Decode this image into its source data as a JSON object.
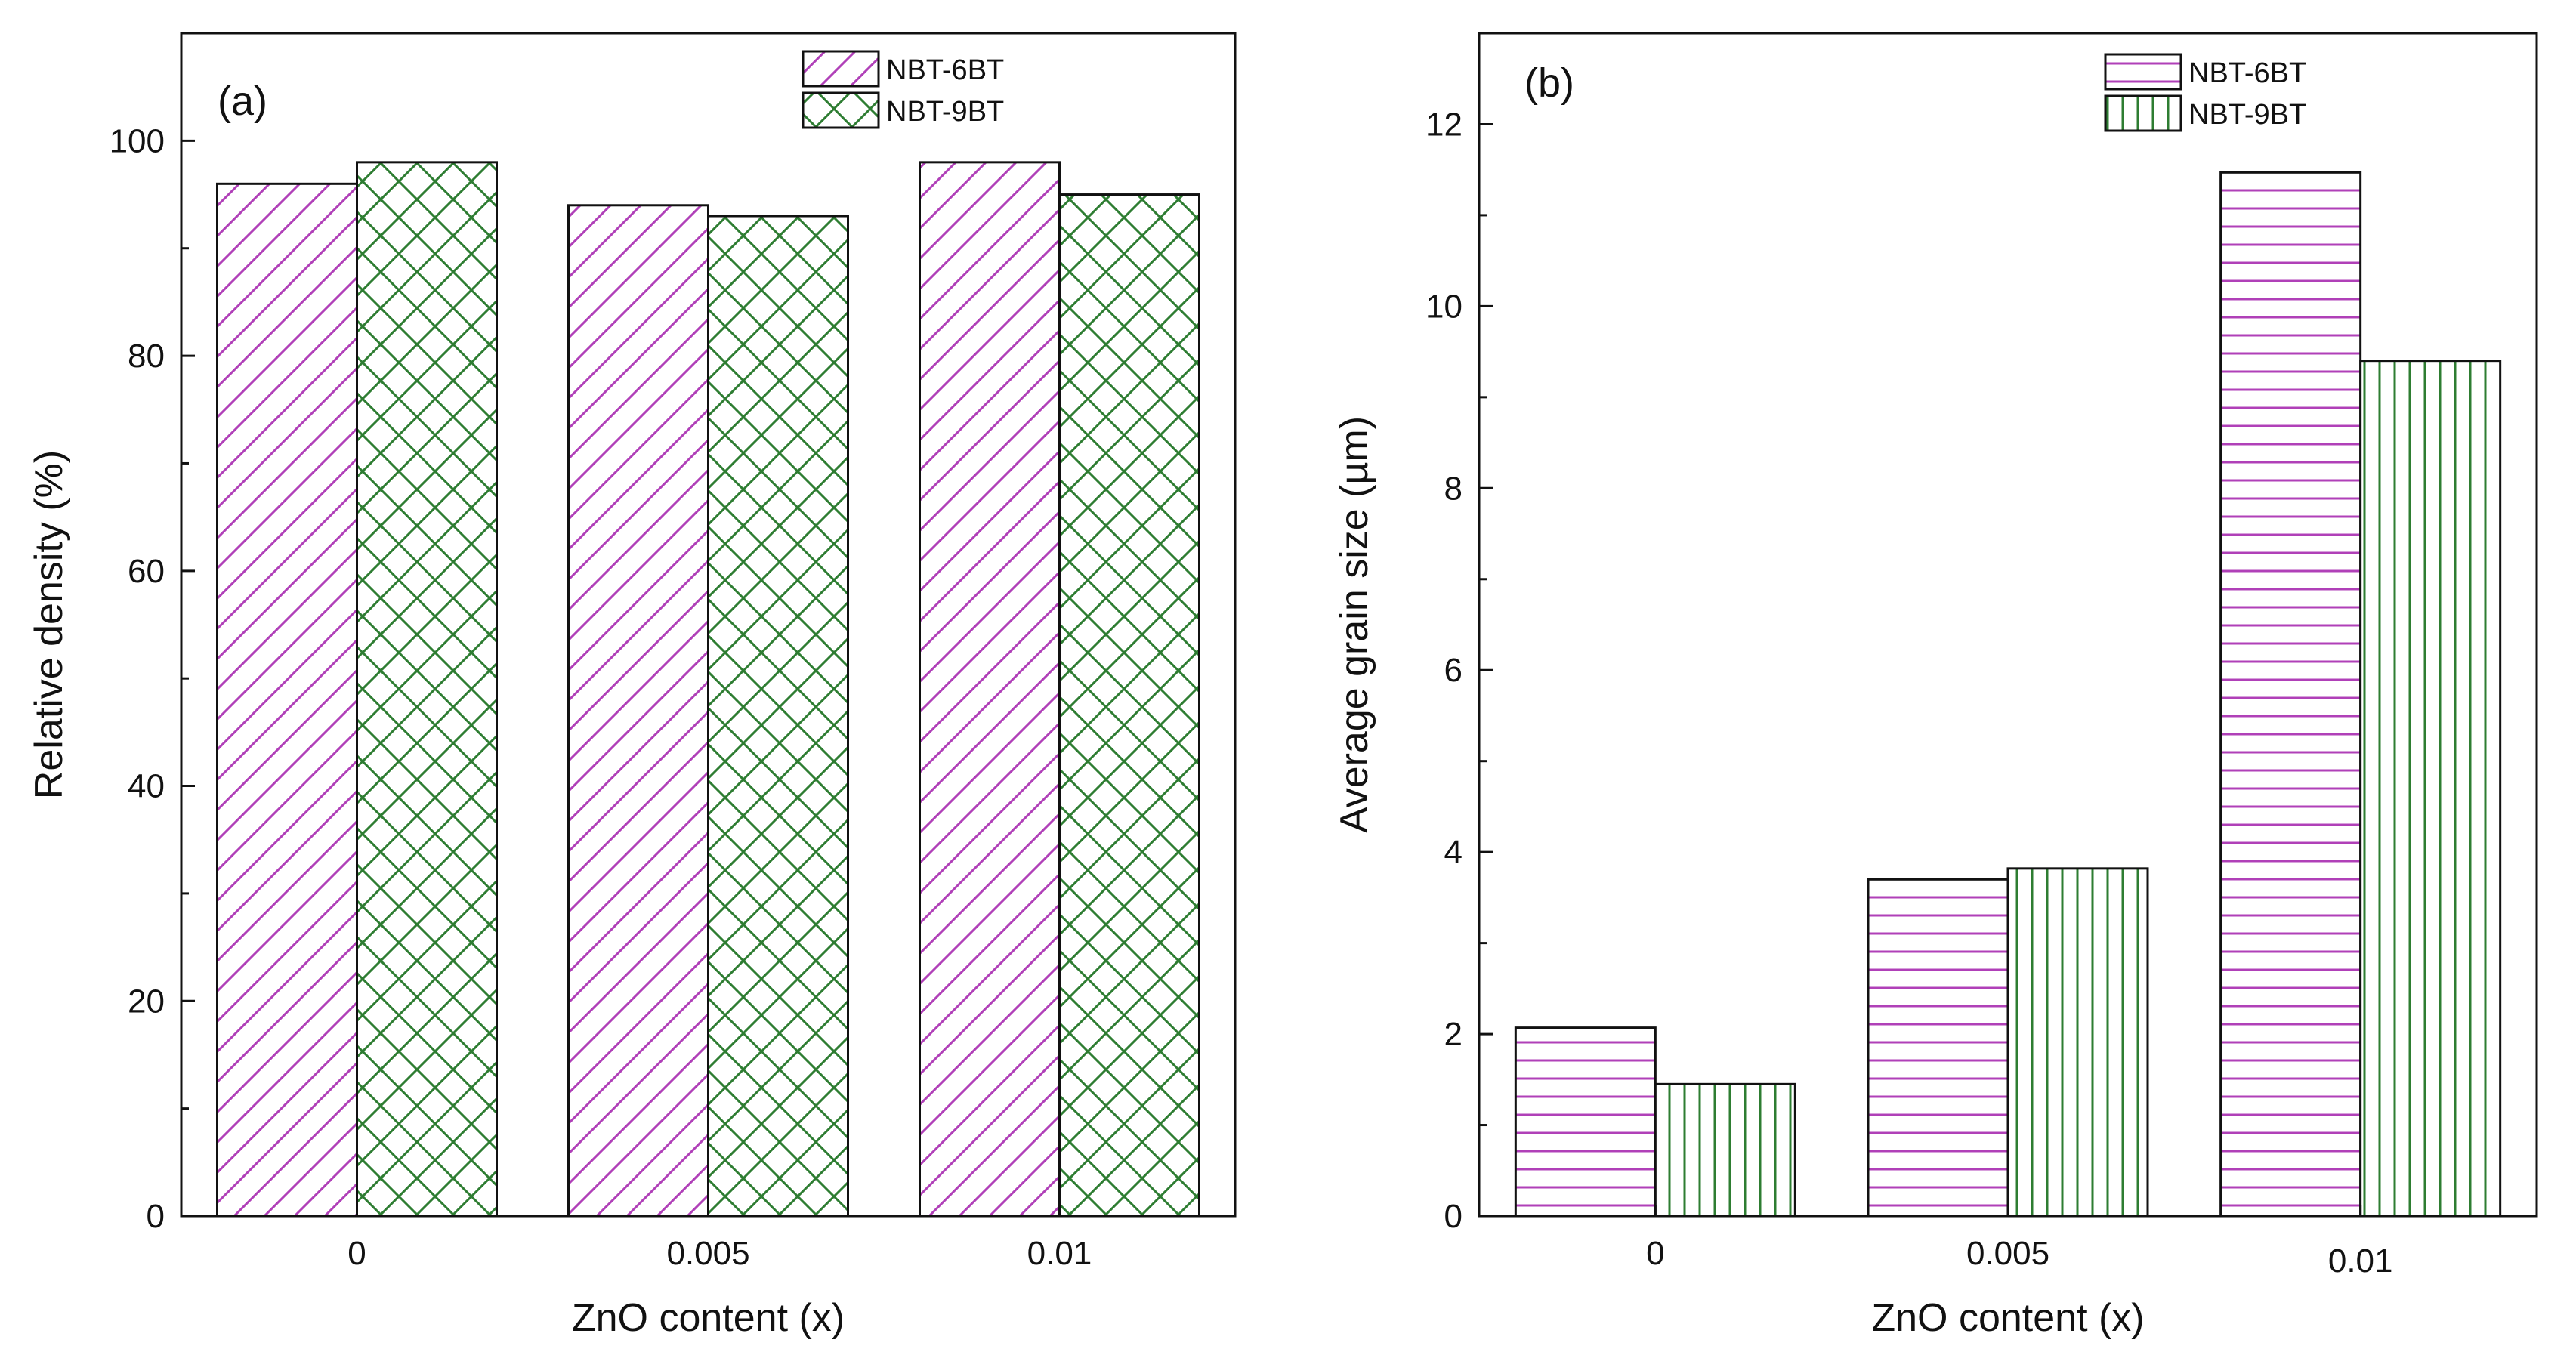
{
  "chart_data": [
    {
      "type": "bar",
      "panel_label": "(a)",
      "categories": [
        "0",
        "0.005",
        "0.01"
      ],
      "series": [
        {
          "name": "NBT-6BT",
          "values": [
            96,
            94,
            98
          ],
          "color": "#b040b8",
          "pattern": "diagonal-hatch"
        },
        {
          "name": "NBT-9BT",
          "values": [
            98,
            93,
            95
          ],
          "color": "#2e7d32",
          "pattern": "cross-hatch"
        }
      ],
      "xlabel": "ZnO content (x)",
      "ylabel": "Relative density (%)",
      "ylim": [
        0,
        110
      ],
      "yticks": [
        0,
        20,
        40,
        60,
        80,
        100
      ],
      "legend_position": "top-right"
    },
    {
      "type": "bar",
      "panel_label": "(b)",
      "categories": [
        "0",
        "0.005",
        "0.01"
      ],
      "series": [
        {
          "name": "NBT-6BT",
          "values": [
            2.07,
            3.7,
            11.47
          ],
          "color": "#b040b8",
          "pattern": "horizontal-lines"
        },
        {
          "name": "NBT-9BT",
          "values": [
            1.45,
            3.82,
            9.4
          ],
          "color": "#2e7d32",
          "pattern": "vertical-lines"
        }
      ],
      "xlabel": "ZnO content (x)",
      "ylabel": "Average grain size (µm)",
      "ylim": [
        0,
        13
      ],
      "yticks": [
        0,
        2,
        4,
        6,
        8,
        10,
        12
      ],
      "legend_position": "top-right"
    }
  ]
}
